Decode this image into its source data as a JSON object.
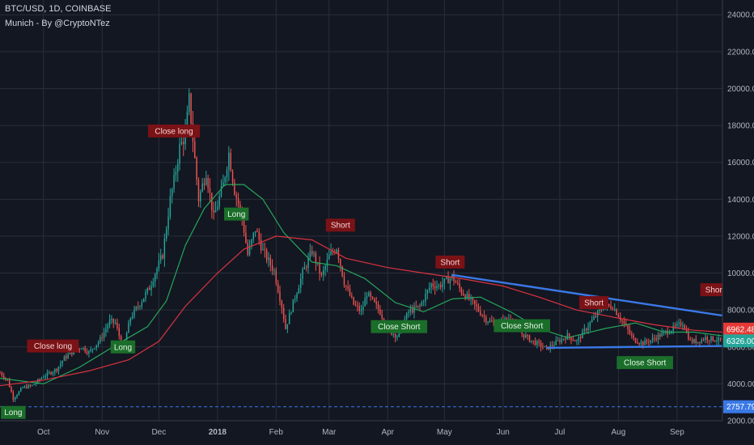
{
  "header": {
    "symbol": "BTC/USD, 1D, COINBASE",
    "indicator": "Munich - By @CryptoNTez"
  },
  "chart_data": {
    "type": "candlestick",
    "symbol": "BTC/USD",
    "timeframe": "1D",
    "exchange": "COINBASE",
    "x_range": [
      "2017-09-08",
      "2018-09-25"
    ],
    "ylim": [
      2000,
      24800
    ],
    "y_ticks": [
      2000,
      4000,
      6000,
      8000,
      10000,
      12000,
      14000,
      16000,
      18000,
      20000,
      22000,
      24000
    ],
    "x_ticks": [
      {
        "date": "2017-10-01",
        "label": "Oct",
        "bold": false
      },
      {
        "date": "2017-11-01",
        "label": "Nov",
        "bold": false
      },
      {
        "date": "2017-12-01",
        "label": "Dec",
        "bold": false
      },
      {
        "date": "2018-01-01",
        "label": "2018",
        "bold": true
      },
      {
        "date": "2018-02-01",
        "label": "Feb",
        "bold": false
      },
      {
        "date": "2018-03-01",
        "label": "Mar",
        "bold": false
      },
      {
        "date": "2018-04-01",
        "label": "Apr",
        "bold": false
      },
      {
        "date": "2018-05-01",
        "label": "May",
        "bold": false
      },
      {
        "date": "2018-06-01",
        "label": "Jun",
        "bold": false
      },
      {
        "date": "2018-07-01",
        "label": "Jul",
        "bold": false
      },
      {
        "date": "2018-08-01",
        "label": "Aug",
        "bold": false
      },
      {
        "date": "2018-09-01",
        "label": "Sep",
        "bold": false
      }
    ],
    "price_path": [
      [
        "2017-09-08",
        4600
      ],
      [
        "2017-09-12",
        4200
      ],
      [
        "2017-09-15",
        3200
      ],
      [
        "2017-09-20",
        3800
      ],
      [
        "2017-09-25",
        3900
      ],
      [
        "2017-10-01",
        4400
      ],
      [
        "2017-10-08",
        4800
      ],
      [
        "2017-10-12",
        5400
      ],
      [
        "2017-10-16",
        5700
      ],
      [
        "2017-10-21",
        6000
      ],
      [
        "2017-10-25",
        5700
      ],
      [
        "2017-10-31",
        6400
      ],
      [
        "2017-11-05",
        7400
      ],
      [
        "2017-11-08",
        7300
      ],
      [
        "2017-11-12",
        5900
      ],
      [
        "2017-11-16",
        7600
      ],
      [
        "2017-11-20",
        8200
      ],
      [
        "2017-11-26",
        9200
      ],
      [
        "2017-11-29",
        10000
      ],
      [
        "2017-12-03",
        11000
      ],
      [
        "2017-12-07",
        14000
      ],
      [
        "2017-12-09",
        15000
      ],
      [
        "2017-12-12",
        16800
      ],
      [
        "2017-12-15",
        17500
      ],
      [
        "2017-12-17",
        19400
      ],
      [
        "2017-12-22",
        14000
      ],
      [
        "2017-12-26",
        15500
      ],
      [
        "2017-12-30",
        13000
      ],
      [
        "2018-01-04",
        14800
      ],
      [
        "2018-01-07",
        16500
      ],
      [
        "2018-01-10",
        14500
      ],
      [
        "2018-01-14",
        13000
      ],
      [
        "2018-01-17",
        11000
      ],
      [
        "2018-01-21",
        12400
      ],
      [
        "2018-01-25",
        11200
      ],
      [
        "2018-01-31",
        10100
      ],
      [
        "2018-02-04",
        8200
      ],
      [
        "2018-02-06",
        7000
      ],
      [
        "2018-02-10",
        8400
      ],
      [
        "2018-02-15",
        10000
      ],
      [
        "2018-02-20",
        11200
      ],
      [
        "2018-02-25",
        9800
      ],
      [
        "2018-03-01",
        10900
      ],
      [
        "2018-03-05",
        11400
      ],
      [
        "2018-03-09",
        9500
      ],
      [
        "2018-03-14",
        8300
      ],
      [
        "2018-03-18",
        7900
      ],
      [
        "2018-03-21",
        8900
      ],
      [
        "2018-03-28",
        7900
      ],
      [
        "2018-04-01",
        6900
      ],
      [
        "2018-04-06",
        6600
      ],
      [
        "2018-04-12",
        7900
      ],
      [
        "2018-04-18",
        8200
      ],
      [
        "2018-04-24",
        9400
      ],
      [
        "2018-04-28",
        9300
      ],
      [
        "2018-05-05",
        9800
      ],
      [
        "2018-05-10",
        9000
      ],
      [
        "2018-05-15",
        8500
      ],
      [
        "2018-05-23",
        7500
      ],
      [
        "2018-05-28",
        7200
      ],
      [
        "2018-06-05",
        7600
      ],
      [
        "2018-06-10",
        6800
      ],
      [
        "2018-06-15",
        6400
      ],
      [
        "2018-06-24",
        5900
      ],
      [
        "2018-06-30",
        6300
      ],
      [
        "2018-07-05",
        6600
      ],
      [
        "2018-07-10",
        6300
      ],
      [
        "2018-07-17",
        7300
      ],
      [
        "2018-07-24",
        8200
      ],
      [
        "2018-07-29",
        8200
      ],
      [
        "2018-08-03",
        7400
      ],
      [
        "2018-08-09",
        6400
      ],
      [
        "2018-08-14",
        6200
      ],
      [
        "2018-08-19",
        6400
      ],
      [
        "2018-08-24",
        6700
      ],
      [
        "2018-08-30",
        7000
      ],
      [
        "2018-09-04",
        7300
      ],
      [
        "2018-09-08",
        6300
      ],
      [
        "2018-09-12",
        6300
      ],
      [
        "2018-09-16",
        6500
      ],
      [
        "2018-09-25",
        6326
      ]
    ],
    "moving_averages": [
      {
        "color": "#26a65b",
        "values": [
          [
            "2017-09-08",
            4300
          ],
          [
            "2017-10-01",
            4000
          ],
          [
            "2017-10-20",
            4900
          ],
          [
            "2017-11-10",
            6200
          ],
          [
            "2017-11-25",
            7100
          ],
          [
            "2017-12-05",
            8500
          ],
          [
            "2017-12-15",
            11500
          ],
          [
            "2017-12-25",
            13500
          ],
          [
            "2018-01-05",
            14800
          ],
          [
            "2018-01-15",
            14800
          ],
          [
            "2018-01-25",
            14000
          ],
          [
            "2018-02-05",
            12200
          ],
          [
            "2018-02-20",
            10600
          ],
          [
            "2018-03-05",
            10400
          ],
          [
            "2018-03-20",
            9700
          ],
          [
            "2018-04-05",
            8400
          ],
          [
            "2018-04-20",
            7900
          ],
          [
            "2018-05-05",
            8600
          ],
          [
            "2018-05-20",
            8700
          ],
          [
            "2018-06-05",
            7900
          ],
          [
            "2018-06-20",
            7000
          ],
          [
            "2018-07-05",
            6500
          ],
          [
            "2018-07-25",
            7000
          ],
          [
            "2018-08-10",
            7300
          ],
          [
            "2018-08-25",
            6800
          ],
          [
            "2018-09-10",
            6800
          ],
          [
            "2018-09-25",
            6600
          ]
        ]
      },
      {
        "color": "#d9333f",
        "values": [
          [
            "2017-09-08",
            3900
          ],
          [
            "2017-10-01",
            4200
          ],
          [
            "2017-10-25",
            4700
          ],
          [
            "2017-11-15",
            5300
          ],
          [
            "2017-12-01",
            6300
          ],
          [
            "2017-12-15",
            8200
          ],
          [
            "2018-01-01",
            10000
          ],
          [
            "2018-01-15",
            11300
          ],
          [
            "2018-02-01",
            12000
          ],
          [
            "2018-02-20",
            11800
          ],
          [
            "2018-03-10",
            10800
          ],
          [
            "2018-04-01",
            10300
          ],
          [
            "2018-04-20",
            10000
          ],
          [
            "2018-05-10",
            9700
          ],
          [
            "2018-06-01",
            9300
          ],
          [
            "2018-06-20",
            8700
          ],
          [
            "2018-07-10",
            8000
          ],
          [
            "2018-07-30",
            7600
          ],
          [
            "2018-08-20",
            7200
          ],
          [
            "2018-09-10",
            6900
          ],
          [
            "2018-09-25",
            6800
          ]
        ]
      }
    ],
    "trendlines": [
      {
        "color": "#3a79e6",
        "from": [
          "2018-05-05",
          9900
        ],
        "to": [
          "2018-09-25",
          7700
        ]
      },
      {
        "color": "#3a79e6",
        "from": [
          "2018-06-24",
          5950
        ],
        "to": [
          "2018-09-25",
          6050
        ]
      }
    ],
    "horizontal_lines": [
      {
        "value": 2757.79,
        "color": "#3a79e6",
        "style": "dashed"
      }
    ],
    "signals": [
      {
        "label": "Long",
        "date": "2017-09-15",
        "price": 2450,
        "type": "buy"
      },
      {
        "label": "Close long",
        "date": "2017-10-06",
        "price": 6050,
        "type": "sell"
      },
      {
        "label": "Long",
        "date": "2017-11-12",
        "price": 6000,
        "type": "buy"
      },
      {
        "label": "Close long",
        "date": "2017-12-09",
        "price": 17700,
        "type": "sell"
      },
      {
        "label": "Long",
        "date": "2018-01-11",
        "price": 13200,
        "type": "buy"
      },
      {
        "label": "Short",
        "date": "2018-03-07",
        "price": 12600,
        "type": "sell"
      },
      {
        "label": "Close Short",
        "date": "2018-04-07",
        "price": 7100,
        "type": "buy"
      },
      {
        "label": "Short",
        "date": "2018-05-04",
        "price": 10600,
        "type": "sell"
      },
      {
        "label": "Close Short",
        "date": "2018-06-11",
        "price": 7150,
        "type": "buy"
      },
      {
        "label": "Short",
        "date": "2018-07-19",
        "price": 8400,
        "type": "sell"
      },
      {
        "label": "Close Short",
        "date": "2018-08-15",
        "price": 5150,
        "type": "buy"
      },
      {
        "label": "Short",
        "date": "2018-09-21",
        "price": 9100,
        "type": "sell"
      }
    ],
    "price_badges": [
      {
        "label": "6962.48",
        "value": 6962.48,
        "color": "#e53935"
      },
      {
        "label": "6326.00",
        "value": 6326.0,
        "color": "#26a69a"
      },
      {
        "label": "2757.79",
        "value": 2757.79,
        "color": "#3a79e6"
      }
    ]
  }
}
